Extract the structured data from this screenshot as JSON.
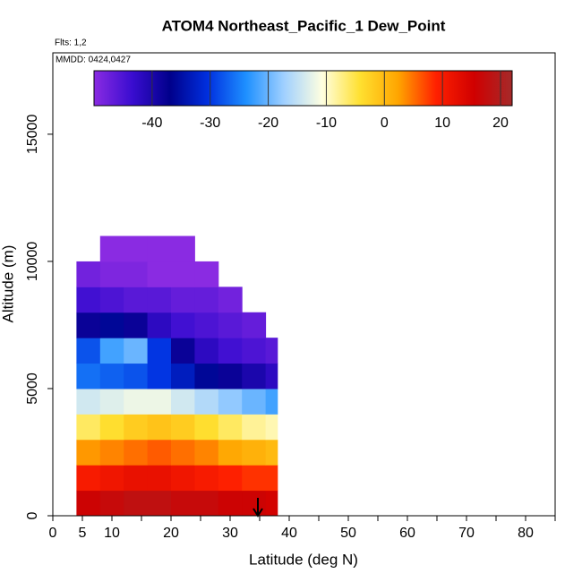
{
  "chart_data": {
    "type": "heatmap",
    "title": "ATOM4 Northeast_Pacific_1 Dew_Point",
    "flights": "Flts: 1,2",
    "dates": "MMDD: 0424,0427",
    "xlabel": "Latitude (deg N)",
    "ylabel": "Altitude (m)",
    "xlim": [
      0,
      85
    ],
    "ylim": [
      0,
      18200
    ],
    "xticks": [
      0,
      5,
      10,
      20,
      30,
      40,
      50,
      60,
      70,
      80
    ],
    "xminor": [
      15,
      25,
      35,
      45,
      55,
      65,
      75,
      85
    ],
    "yticks": [
      0,
      5000,
      10000,
      15000
    ],
    "clim": [
      -50,
      22
    ],
    "cticks": [
      -40,
      -30,
      -20,
      -10,
      0,
      10,
      20
    ],
    "colors": [
      "#8a2be2",
      "#3a0dd0",
      "#00008b",
      "#0030e0",
      "#1e90ff",
      "#a0d0ff",
      "#ffffe0",
      "#ffe030",
      "#ffa500",
      "#ff2000",
      "#d00000",
      "#a52a2a"
    ],
    "xbins": [
      4,
      8,
      12,
      16,
      20,
      24,
      28,
      32,
      36,
      38
    ],
    "ybins": [
      0,
      1000,
      2000,
      3000,
      4000,
      5000,
      6000,
      7000,
      8000,
      9000,
      10000,
      11000
    ],
    "values": [
      [
        16,
        17,
        18,
        18,
        17,
        17,
        16,
        16,
        15
      ],
      [
        10,
        11,
        12,
        12,
        11,
        10,
        9,
        8,
        8
      ],
      [
        3,
        4,
        5,
        6,
        5,
        4,
        2,
        1,
        0
      ],
      [
        -6,
        -4,
        -2,
        -1,
        -2,
        -4,
        -6,
        -8,
        -9
      ],
      [
        -14,
        -13,
        -12,
        -12,
        -14,
        -16,
        -18,
        -20,
        -22
      ],
      [
        -26,
        -27,
        -28,
        -30,
        -33,
        -36,
        -38,
        -40,
        -42
      ],
      [
        -28,
        -22,
        -20,
        -30,
        -38,
        -42,
        -44,
        -45,
        -46
      ],
      [
        -38,
        -36,
        -38,
        -42,
        -44,
        -45,
        -46,
        -47,
        null
      ],
      [
        -44,
        -45,
        -46,
        -46,
        -47,
        -47,
        -48,
        null,
        null
      ],
      [
        -48,
        -49,
        -49,
        -50,
        -50,
        -50,
        null,
        null,
        null
      ],
      [
        null,
        -50,
        -50,
        -50,
        -50,
        null,
        null,
        null,
        null
      ]
    ]
  }
}
